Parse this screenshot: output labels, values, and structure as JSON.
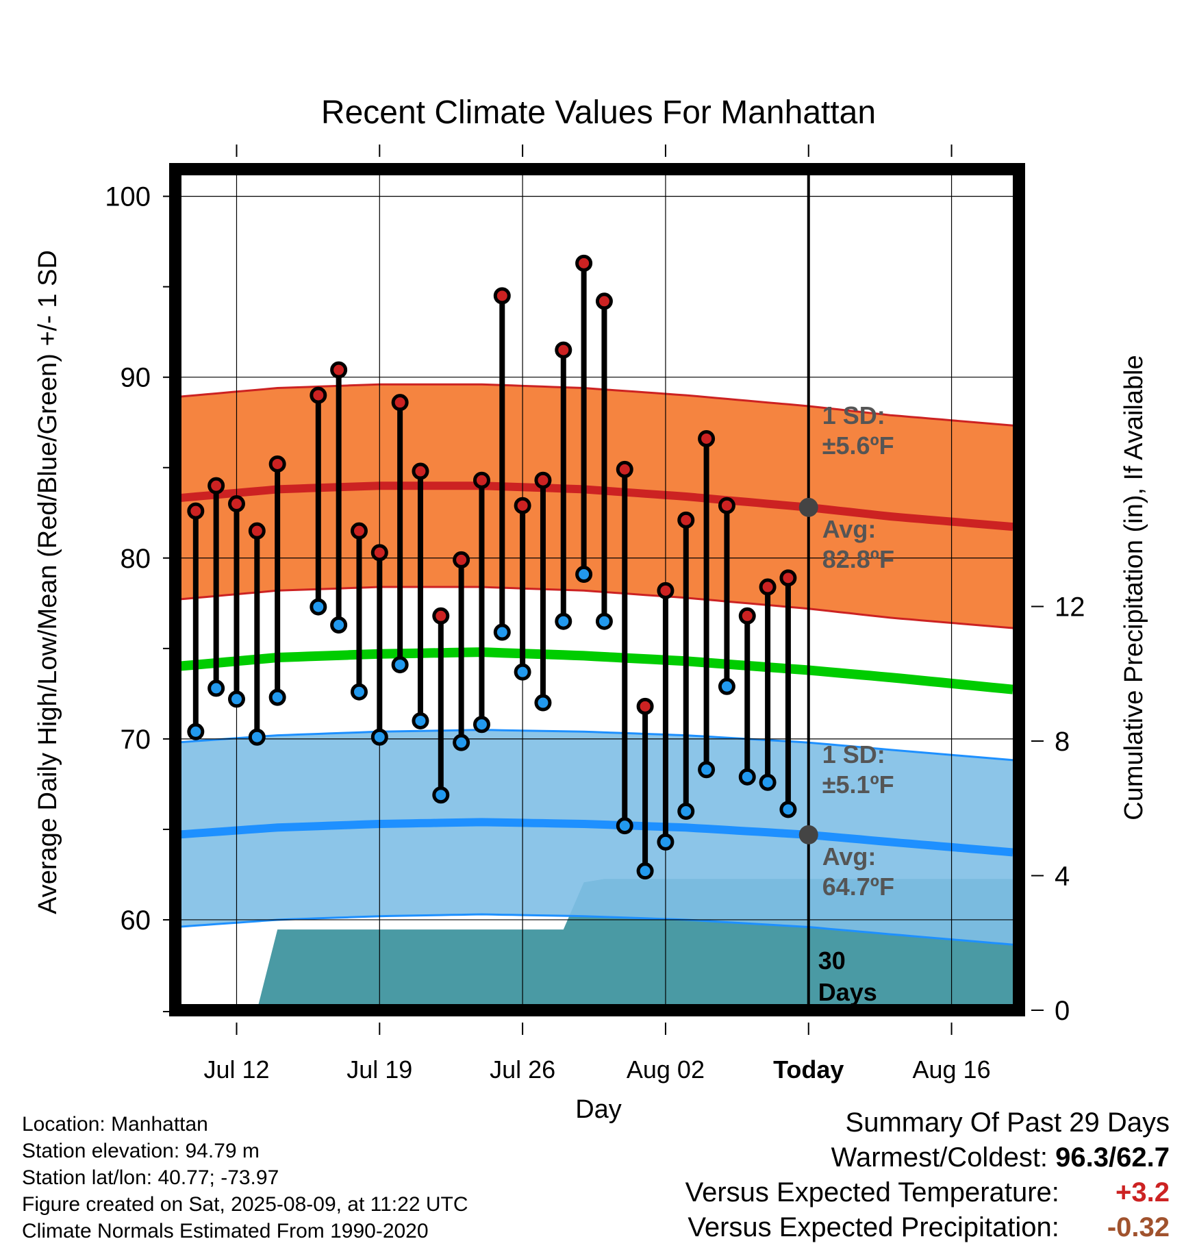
{
  "chart_data": {
    "type": "line",
    "title": "Recent Climate Values For Manhattan",
    "xlabel": "Day",
    "ylabel": "Average Daily High/Low/Mean (Red/Blue/Green) +/- 1 SD",
    "y2label": "Cumulative Precipitation (in), If Available",
    "x_tick_labels": [
      "Jul 12",
      "Jul 19",
      "Jul 26",
      "Aug 02",
      "Today",
      "Aug 16"
    ],
    "x_tick_days": [
      3,
      10,
      17,
      24,
      31,
      38
    ],
    "x_range_days": [
      0,
      41.3
    ],
    "y_ticks": [
      60,
      70,
      80,
      90,
      100
    ],
    "y_range": [
      55,
      101.5
    ],
    "y2_ticks": [
      0,
      4,
      8,
      12
    ],
    "y2_range": [
      0,
      25
    ],
    "today_day": 31,
    "days_label": "30\nDays",
    "normals": {
      "days": [
        0,
        5,
        10,
        15,
        20,
        25,
        31,
        35,
        41.3
      ],
      "high_avg": [
        83.3,
        83.8,
        84.0,
        84.0,
        83.8,
        83.4,
        82.8,
        82.3,
        81.7
      ],
      "high_sd": 5.6,
      "mean_avg": [
        74.0,
        74.5,
        74.7,
        74.8,
        74.6,
        74.3,
        73.8,
        73.4,
        72.7
      ],
      "low_avg": [
        64.7,
        65.1,
        65.3,
        65.4,
        65.3,
        65.1,
        64.7,
        64.3,
        63.7
      ],
      "low_sd": 5.1
    },
    "annotations": {
      "high_sd_label": "1 SD:",
      "high_sd_value": "±5.6ºF",
      "high_avg_label": "Avg:",
      "high_avg_value": "82.8ºF",
      "low_sd_label": "1 SD:",
      "low_sd_value": "±5.1ºF",
      "low_avg_label": "Avg:",
      "low_avg_value": "64.7ºF"
    },
    "observed": {
      "days": [
        1,
        2,
        3,
        4,
        5,
        7,
        8,
        9,
        10,
        11,
        12,
        13,
        14,
        15,
        16,
        17,
        18,
        19,
        20,
        21,
        22,
        23,
        24,
        25,
        26,
        27,
        28,
        29,
        30
      ],
      "high": [
        82.6,
        84.0,
        83.0,
        81.5,
        85.2,
        89.0,
        90.4,
        81.5,
        80.3,
        88.6,
        84.8,
        76.8,
        79.9,
        84.3,
        94.5,
        82.9,
        84.3,
        91.5,
        96.3,
        94.2,
        84.9,
        71.8,
        78.2,
        82.1,
        86.6,
        82.9,
        76.8,
        78.4,
        78.9
      ],
      "low": [
        70.4,
        72.8,
        72.2,
        70.1,
        72.3,
        77.3,
        76.3,
        72.6,
        70.1,
        74.1,
        71.0,
        66.9,
        69.8,
        70.8,
        75.9,
        73.7,
        72.0,
        76.5,
        79.1,
        76.5,
        65.2,
        62.7,
        64.3,
        66.0,
        68.3,
        72.9,
        67.9,
        67.6,
        66.1
      ]
    },
    "precipitation": {
      "days": [
        1,
        4,
        5,
        19,
        20,
        21,
        26,
        41.3
      ],
      "cumulative": [
        0,
        0,
        2.4,
        2.4,
        3.8,
        3.9,
        3.9,
        3.9
      ]
    },
    "colors": {
      "high_band": "#f47a30",
      "high_line": "#cc2222",
      "mean_line": "#00cc00",
      "low_band": "#7fbfe6",
      "low_line": "#1e90ff",
      "precip": "#4a9aa4",
      "high_dot": "#cc2222",
      "low_dot": "#2299ee",
      "annotation_text": "#555555"
    }
  },
  "footer": {
    "location": "Location: Manhattan",
    "elevation": "Station elevation: 94.79 m",
    "latlon": "Station lat/lon: 40.77; -73.97",
    "created": "Figure created on Sat, 2025-08-09, at 11:22 UTC",
    "normals_source": "Climate Normals Estimated From 1990-2020"
  },
  "summary": {
    "title": "Summary Of Past 29 Days",
    "warm_cold_label": "Warmest/Coldest:",
    "warm_cold_value": "96.3/62.7",
    "temp_label": "Versus Expected Temperature:",
    "temp_value": "+3.2",
    "temp_color": "#cc2222",
    "precip_label": "Versus Expected Precipitation:",
    "precip_value": "-0.32",
    "precip_color": "#a0522d"
  }
}
